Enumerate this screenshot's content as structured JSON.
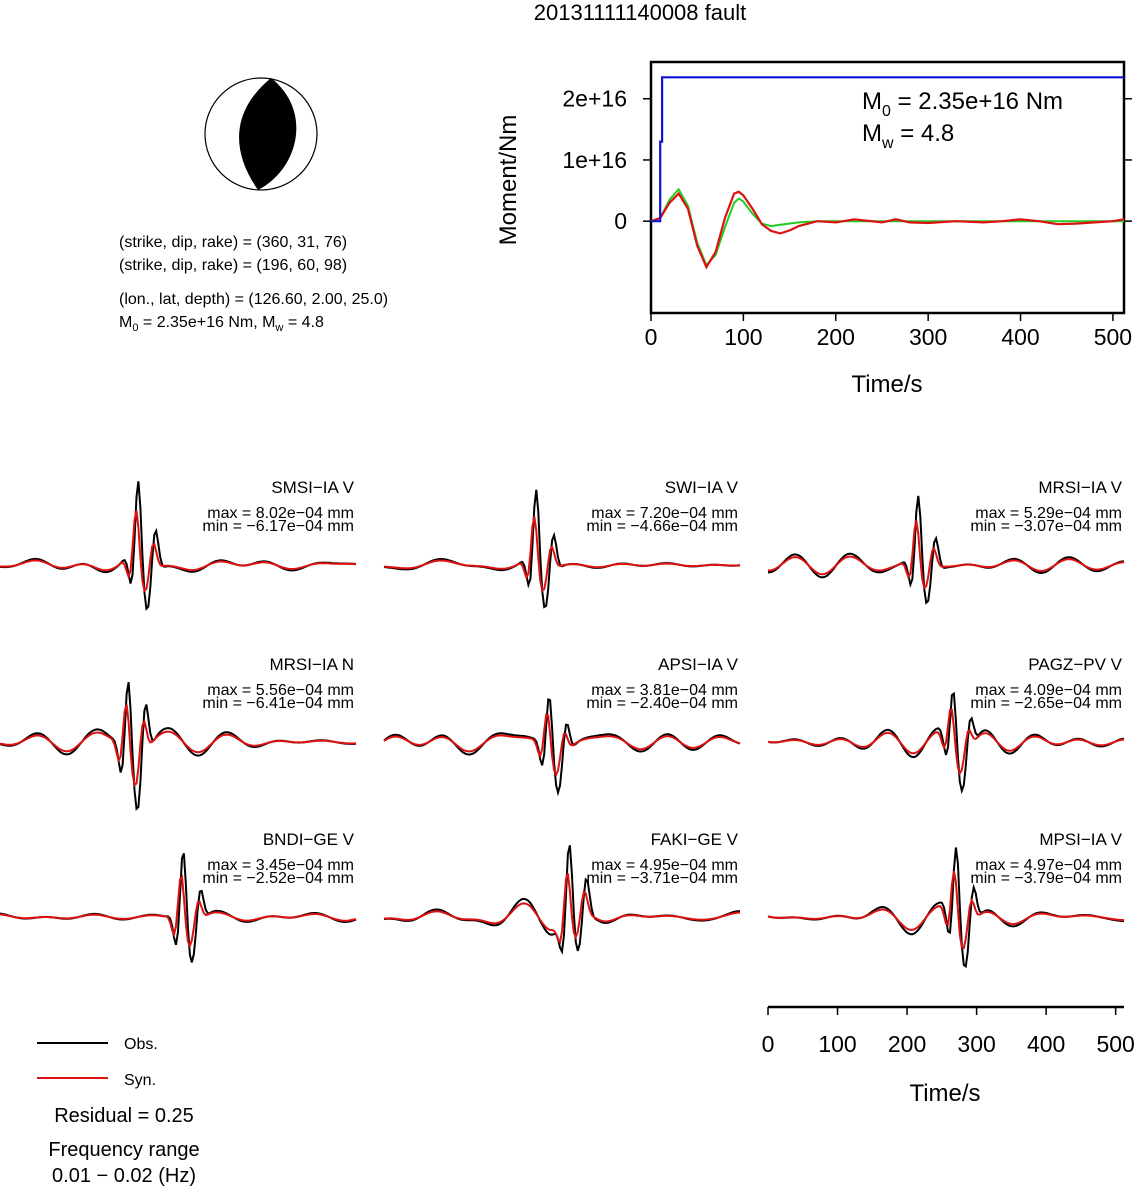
{
  "page": {
    "title": "20131111140008 fault"
  },
  "mechanism": {
    "lines": [
      "(strike, dip, rake) = (360, 31, 76)",
      "(strike, dip, rake) = (196, 60, 98)",
      "(lon., lat, depth) = (126.60, 2.00, 25.0)"
    ],
    "m0_label": "M",
    "m0_sub": "0",
    "m0_rest": " = 2.35e+16 Nm, M",
    "mw_sub": "w",
    "mw_rest": " = 4.8"
  },
  "legend": {
    "obs": "Obs.",
    "syn": "Syn.",
    "residual": "Residual = 0.25",
    "freq_title": "Frequency range",
    "freq_value": "0.01 − 0.02 (Hz)"
  },
  "colors": {
    "obs": "#000000",
    "syn": "#dd1111",
    "moment": "#1111dd",
    "stf": "#22cc22"
  },
  "chart_data": [
    {
      "type": "line",
      "name": "moment-function",
      "xlabel": "Time/s",
      "ylabel": "Moment/Nm",
      "xlim": [
        0,
        512
      ],
      "ylim": [
        -1.5e+16,
        2.6e+16
      ],
      "xticks": [
        0,
        100,
        200,
        300,
        400,
        500
      ],
      "xtick_labels": [
        "0",
        "100",
        "200",
        "300",
        "400",
        "500"
      ],
      "yticks": [
        0,
        1e+16,
        2e+16
      ],
      "ytick_labels": [
        "0",
        "1e+16",
        "2e+16"
      ],
      "annotation": {
        "m0": "M",
        "m0_sub": "0",
        "m0_val": " = 2.35e+16 Nm",
        "mw": "M",
        "mw_sub": "w",
        "mw_val": " = 4.8"
      },
      "cumulative": {
        "x": [
          0,
          10,
          10,
          12,
          12,
          512
        ],
        "y": [
          0,
          0,
          1.3e+16,
          1.3e+16,
          2.35e+16,
          2.35e+16
        ]
      },
      "red_curve": {
        "x": [
          0,
          10,
          20,
          30,
          40,
          50,
          60,
          70,
          80,
          90,
          95,
          100,
          110,
          120,
          130,
          140,
          150,
          160,
          180,
          200,
          220,
          250,
          265,
          280,
          300,
          330,
          360,
          380,
          400,
          420,
          440,
          460,
          480,
          500,
          512
        ],
        "y": [
          0,
          500000000000000.0,
          3000000000000000.0,
          4500000000000000.0,
          2000000000000000.0,
          -4000000000000000.0,
          -7500000000000000.0,
          -5000000000000000.0,
          500000000000000.0,
          4500000000000000.0,
          4800000000000000.0,
          4200000000000000.0,
          2000000000000000.0,
          -500000000000000.0,
          -1600000000000000.0,
          -2000000000000000.0,
          -1500000000000000.0,
          -800000000000000.0,
          0.0,
          -200000000000000.0,
          300000000000000.0,
          -200000000000000.0,
          300000000000000.0,
          -200000000000000.0,
          -300000000000000.0,
          0.0,
          -200000000000000.0,
          0.0,
          300000000000000.0,
          0.0,
          -500000000000000.0,
          -400000000000000.0,
          -200000000000000.0,
          0.0,
          300000000000000.0
        ]
      },
      "green_curve": {
        "x": [
          0,
          10,
          20,
          30,
          40,
          50,
          60,
          70,
          80,
          90,
          95,
          100,
          110,
          120,
          130,
          140,
          160,
          180,
          200,
          250,
          300,
          400,
          512
        ],
        "y": [
          0,
          500000000000000.0,
          3500000000000000.0,
          5200000000000000.0,
          2500000000000000.0,
          -3500000000000000.0,
          -7200000000000000.0,
          -5500000000000000.0,
          -1000000000000000.0,
          3000000000000000.0,
          3700000000000000.0,
          3200000000000000.0,
          1200000000000000.0,
          -400000000000000.0,
          -800000000000000.0,
          -600000000000000.0,
          -200000000000000.0,
          0.0,
          0.0,
          0.0,
          0.0,
          0.0,
          0.0
        ]
      }
    },
    {
      "type": "line",
      "name": "waveform-comparison",
      "xlabel": "Time/s",
      "xlim": [
        0,
        512
      ],
      "xticks": [
        0,
        100,
        200,
        300,
        400,
        500
      ],
      "xtick_labels": [
        "0",
        "100",
        "200",
        "300",
        "400",
        "500"
      ],
      "stations": [
        {
          "label": "SMSI−IA V",
          "max": "max = 8.02e−04 mm",
          "min": "min = −6.17e−04 mm"
        },
        {
          "label": "SWI−IA V",
          "max": "max = 7.20e−04 mm",
          "min": "min = −4.66e−04 mm"
        },
        {
          "label": "MRSI−IA V",
          "max": "max = 5.29e−04 mm",
          "min": "min = −3.07e−04 mm"
        },
        {
          "label": "MRSI−IA N",
          "max": "max = 5.56e−04 mm",
          "min": "min = −6.41e−04 mm"
        },
        {
          "label": "APSI−IA V",
          "max": "max = 3.81e−04 mm",
          "min": "min = −2.40e−04 mm"
        },
        {
          "label": "PAGZ−PV V",
          "max": "max = 4.09e−04 mm",
          "min": "min = −2.65e−04 mm"
        },
        {
          "label": "BNDI−GE V",
          "max": "max = 3.45e−04 mm",
          "min": "min = −2.52e−04 mm"
        },
        {
          "label": "FAKI−GE V",
          "max": "max = 4.95e−04 mm",
          "min": "min = −3.71e−04 mm"
        },
        {
          "label": "MPSI−IA V",
          "max": "max = 4.97e−04 mm",
          "min": "min = −3.79e−04 mm"
        }
      ]
    }
  ]
}
